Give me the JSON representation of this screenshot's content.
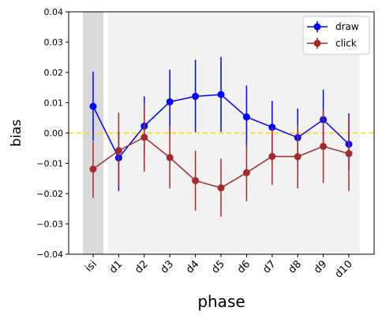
{
  "chart_data": {
    "type": "line",
    "title": "",
    "xlabel": "phase",
    "ylabel": "bias",
    "categories": [
      "isi",
      "d1",
      "d2",
      "d3",
      "d4",
      "d5",
      "d6",
      "d7",
      "d8",
      "d9",
      "d10"
    ],
    "ylim": [
      -0.04,
      0.04
    ],
    "yticks": [
      -0.04,
      -0.03,
      -0.02,
      -0.01,
      0.0,
      0.01,
      0.02,
      0.03,
      0.04
    ],
    "ytick_labels": [
      "−0.04",
      "−0.03",
      "−0.02",
      "−0.01",
      "0.00",
      "0.01",
      "0.02",
      "0.03",
      "0.04"
    ],
    "reference_line": {
      "y": 0.0,
      "color": "#ffd700",
      "style": "dashed"
    },
    "shaded_regions": [
      {
        "from": "isi",
        "to": "isi",
        "color": "#d9d9d9"
      },
      {
        "from": "d1",
        "to": "d10",
        "color": "#f2f2f2"
      }
    ],
    "legend": {
      "placement": "top-right"
    },
    "series": [
      {
        "name": "draw",
        "color": "#0000ff",
        "values": [
          0.0088,
          -0.0082,
          0.0023,
          0.0103,
          0.0121,
          0.0127,
          0.0053,
          0.0019,
          -0.0015,
          0.0044,
          -0.0037
        ],
        "err_lower": [
          -0.0027,
          -0.0191,
          -0.0074,
          -0.0003,
          0.0003,
          0.0004,
          -0.0047,
          -0.0068,
          -0.0106,
          -0.0053,
          -0.0121
        ],
        "err_upper": [
          0.0202,
          0.0004,
          0.0121,
          0.0209,
          0.0242,
          0.0251,
          0.0157,
          0.0106,
          0.0081,
          0.0143,
          0.0065
        ]
      },
      {
        "name": "click",
        "color": "#a52a2a",
        "values": [
          -0.0119,
          -0.0058,
          -0.0014,
          -0.0081,
          -0.0157,
          -0.0181,
          -0.0131,
          -0.0077,
          -0.0078,
          -0.0044,
          -0.0068
        ],
        "err_lower": [
          -0.0214,
          -0.0178,
          -0.0127,
          -0.0183,
          -0.0256,
          -0.0276,
          -0.0225,
          -0.0171,
          -0.0182,
          -0.0165,
          -0.0191
        ],
        "err_upper": [
          -0.0029,
          0.0067,
          0.0099,
          0.0022,
          -0.0058,
          -0.0085,
          -0.0037,
          0.0017,
          0.0027,
          0.0077,
          0.0055
        ]
      }
    ]
  }
}
